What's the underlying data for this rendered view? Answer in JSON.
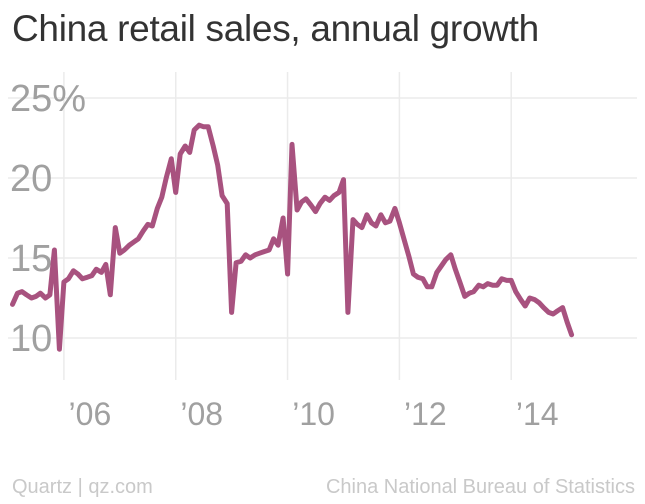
{
  "chart_data": {
    "type": "line",
    "title": "China retail sales, annual growth",
    "xlabel": "",
    "ylabel": "",
    "xlim": [
      2005.0,
      2016.25
    ],
    "ylim": [
      8.0,
      26.0
    ],
    "y_ticks": [
      {
        "value": 25,
        "label": "25%"
      },
      {
        "value": 20,
        "label": "20"
      },
      {
        "value": 15,
        "label": "15"
      },
      {
        "value": 10,
        "label": "10"
      }
    ],
    "x_ticks": [
      {
        "value": 2006,
        "label": "’06"
      },
      {
        "value": 2008,
        "label": "’08"
      },
      {
        "value": 2010,
        "label": "’10"
      },
      {
        "value": 2012,
        "label": "’12"
      },
      {
        "value": 2014,
        "label": "’14"
      }
    ],
    "grid": true,
    "series": [
      {
        "color": "#a8527f",
        "points": [
          [
            2005.08,
            12.1
          ],
          [
            2005.17,
            12.8
          ],
          [
            2005.25,
            12.9
          ],
          [
            2005.33,
            12.7
          ],
          [
            2005.42,
            12.5
          ],
          [
            2005.5,
            12.6
          ],
          [
            2005.58,
            12.8
          ],
          [
            2005.67,
            12.5
          ],
          [
            2005.75,
            12.7
          ],
          [
            2005.83,
            15.5
          ],
          [
            2005.92,
            9.3
          ],
          [
            2006.0,
            13.5
          ],
          [
            2006.08,
            13.7
          ],
          [
            2006.17,
            14.2
          ],
          [
            2006.25,
            14.0
          ],
          [
            2006.33,
            13.7
          ],
          [
            2006.42,
            13.8
          ],
          [
            2006.5,
            13.9
          ],
          [
            2006.58,
            14.3
          ],
          [
            2006.67,
            14.1
          ],
          [
            2006.75,
            14.6
          ],
          [
            2006.83,
            12.7
          ],
          [
            2006.92,
            16.9
          ],
          [
            2007.0,
            15.3
          ],
          [
            2007.08,
            15.5
          ],
          [
            2007.17,
            15.8
          ],
          [
            2007.25,
            16.0
          ],
          [
            2007.33,
            16.2
          ],
          [
            2007.42,
            16.7
          ],
          [
            2007.5,
            17.1
          ],
          [
            2007.58,
            17.0
          ],
          [
            2007.67,
            18.1
          ],
          [
            2007.75,
            18.8
          ],
          [
            2007.83,
            20.0
          ],
          [
            2007.92,
            21.2
          ],
          [
            2008.0,
            19.1
          ],
          [
            2008.08,
            21.5
          ],
          [
            2008.17,
            22.0
          ],
          [
            2008.25,
            21.6
          ],
          [
            2008.33,
            23.0
          ],
          [
            2008.42,
            23.3
          ],
          [
            2008.5,
            23.2
          ],
          [
            2008.58,
            23.2
          ],
          [
            2008.67,
            22.0
          ],
          [
            2008.75,
            20.8
          ],
          [
            2008.83,
            18.9
          ],
          [
            2008.92,
            18.4
          ],
          [
            2009.0,
            11.6
          ],
          [
            2009.08,
            14.7
          ],
          [
            2009.17,
            14.8
          ],
          [
            2009.25,
            15.2
          ],
          [
            2009.33,
            15.0
          ],
          [
            2009.42,
            15.2
          ],
          [
            2009.5,
            15.3
          ],
          [
            2009.58,
            15.4
          ],
          [
            2009.67,
            15.5
          ],
          [
            2009.75,
            16.2
          ],
          [
            2009.83,
            15.8
          ],
          [
            2009.92,
            17.5
          ],
          [
            2010.0,
            14.0
          ],
          [
            2010.08,
            22.1
          ],
          [
            2010.17,
            18.0
          ],
          [
            2010.25,
            18.5
          ],
          [
            2010.33,
            18.7
          ],
          [
            2010.42,
            18.3
          ],
          [
            2010.5,
            17.9
          ],
          [
            2010.58,
            18.4
          ],
          [
            2010.67,
            18.8
          ],
          [
            2010.75,
            18.6
          ],
          [
            2010.83,
            18.9
          ],
          [
            2010.92,
            19.1
          ],
          [
            2011.0,
            19.9
          ],
          [
            2011.08,
            11.6
          ],
          [
            2011.17,
            17.4
          ],
          [
            2011.25,
            17.1
          ],
          [
            2011.33,
            16.9
          ],
          [
            2011.42,
            17.7
          ],
          [
            2011.5,
            17.2
          ],
          [
            2011.58,
            17.0
          ],
          [
            2011.67,
            17.7
          ],
          [
            2011.75,
            17.2
          ],
          [
            2011.83,
            17.3
          ],
          [
            2011.92,
            18.1
          ],
          [
            2012.0,
            17.2
          ],
          [
            2012.08,
            16.2
          ],
          [
            2012.17,
            15.1
          ],
          [
            2012.25,
            14.0
          ],
          [
            2012.33,
            13.8
          ],
          [
            2012.42,
            13.7
          ],
          [
            2012.5,
            13.2
          ],
          [
            2012.58,
            13.2
          ],
          [
            2012.67,
            14.1
          ],
          [
            2012.75,
            14.5
          ],
          [
            2012.83,
            14.9
          ],
          [
            2012.92,
            15.2
          ],
          [
            2013.0,
            14.3
          ],
          [
            2013.08,
            13.5
          ],
          [
            2013.17,
            12.6
          ],
          [
            2013.25,
            12.8
          ],
          [
            2013.33,
            12.9
          ],
          [
            2013.42,
            13.3
          ],
          [
            2013.5,
            13.2
          ],
          [
            2013.58,
            13.4
          ],
          [
            2013.67,
            13.3
          ],
          [
            2013.75,
            13.3
          ],
          [
            2013.83,
            13.7
          ],
          [
            2013.92,
            13.6
          ],
          [
            2014.0,
            13.6
          ],
          [
            2014.08,
            12.9
          ],
          [
            2014.17,
            12.4
          ],
          [
            2014.25,
            12.0
          ],
          [
            2014.33,
            12.5
          ],
          [
            2014.42,
            12.4
          ],
          [
            2014.5,
            12.2
          ],
          [
            2014.58,
            11.9
          ],
          [
            2014.67,
            11.6
          ],
          [
            2014.75,
            11.5
          ],
          [
            2014.83,
            11.7
          ],
          [
            2014.92,
            11.9
          ],
          [
            2015.0,
            11.0
          ],
          [
            2015.08,
            10.2
          ]
        ]
      }
    ]
  },
  "footer": {
    "source_left": "Quartz | qz.com",
    "source_right": "China National Bureau of Statistics"
  }
}
